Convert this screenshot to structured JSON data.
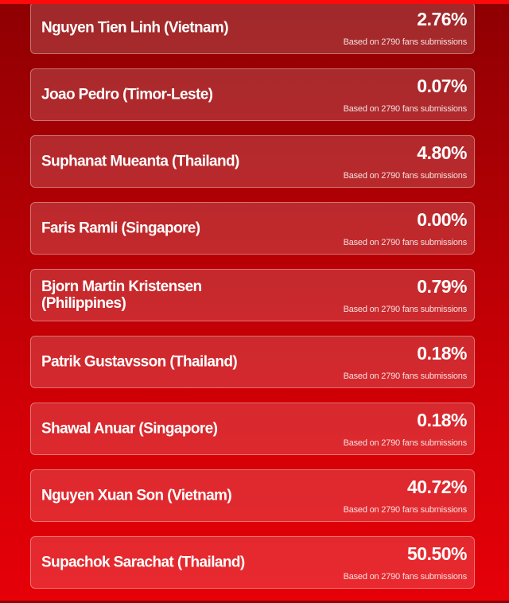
{
  "items": [
    {
      "name": "Nguyen Tien Linh (Vietnam)",
      "percent": "2.76%",
      "note": "Based on 2790 fans submissions"
    },
    {
      "name": "Joao Pedro (Timor-Leste)",
      "percent": "0.07%",
      "note": "Based on 2790 fans submissions"
    },
    {
      "name": "Suphanat Mueanta (Thailand)",
      "percent": "4.80%",
      "note": "Based on 2790 fans submissions"
    },
    {
      "name": "Faris Ramli (Singapore)",
      "percent": "0.00%",
      "note": "Based on 2790 fans submissions"
    },
    {
      "name": "Bjorn Martin Kristensen (Philippines)",
      "percent": "0.79%",
      "note": "Based on 2790 fans submissions"
    },
    {
      "name": "Patrik Gustavsson (Thailand)",
      "percent": "0.18%",
      "note": "Based on 2790 fans submissions"
    },
    {
      "name": "Shawal Anuar (Singapore)",
      "percent": "0.18%",
      "note": "Based on 2790 fans submissions"
    },
    {
      "name": "Nguyen Xuan Son (Vietnam)",
      "percent": "40.72%",
      "note": "Based on 2790 fans submissions"
    },
    {
      "name": "Supachok Sarachat (Thailand)",
      "percent": "50.50%",
      "note": "Based on 2790 fans submissions"
    }
  ],
  "colors": {
    "top_bar": "#ff0a0a",
    "background_top": "#8e0003",
    "background_bottom": "#e60008"
  }
}
